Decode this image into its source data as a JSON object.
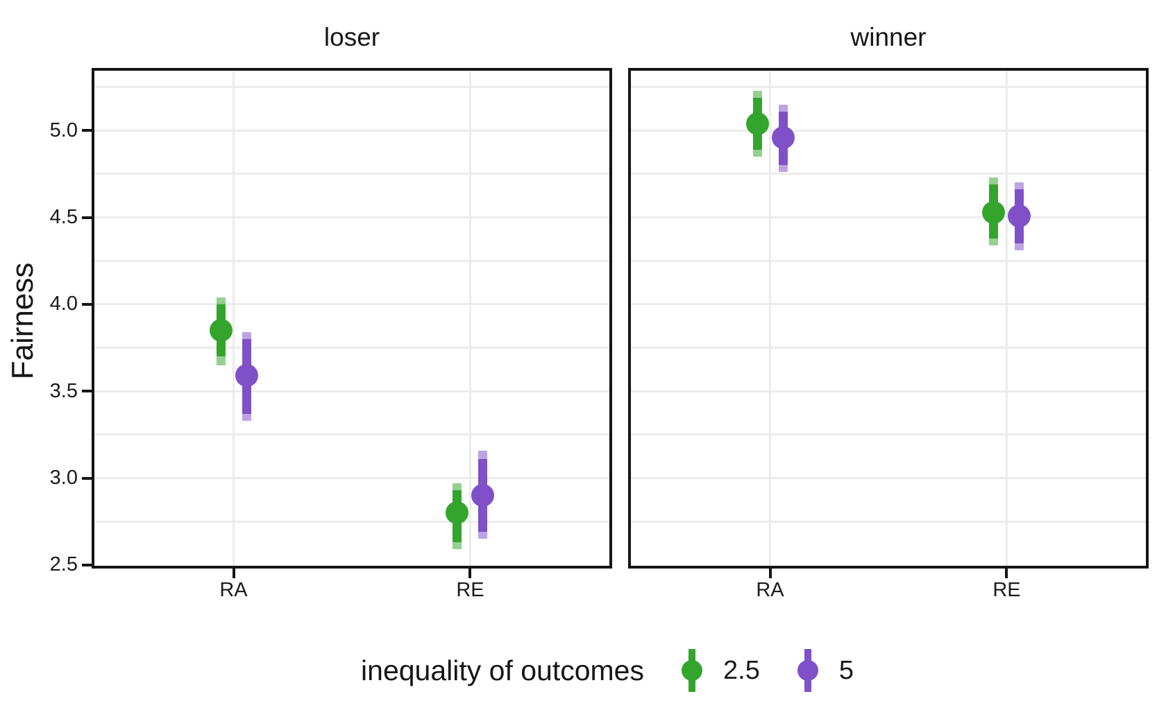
{
  "chart_data": {
    "type": "pointrange",
    "facets": [
      "loser",
      "winner"
    ],
    "categories": [
      "RA",
      "RE"
    ],
    "ylabel": "Fairness",
    "y_axis": {
      "domain": [
        2.48,
        5.36
      ],
      "ticks": [
        {
          "value": 5.0,
          "label": "5.0"
        },
        {
          "value": 4.5,
          "label": "4.5"
        },
        {
          "value": 4.0,
          "label": "4.0"
        },
        {
          "value": 3.5,
          "label": "3.5"
        },
        {
          "value": 3.0,
          "label": "3.0"
        },
        {
          "value": 2.5,
          "label": "2.5"
        }
      ],
      "minor_gridlines": [
        2.75,
        3.0,
        3.25,
        3.5,
        3.75,
        4.0,
        4.25,
        4.5,
        4.75,
        5.0,
        5.25
      ],
      "grid": true
    },
    "series": [
      {
        "name": "2.5",
        "color": "#33a52c"
      },
      {
        "name": "5",
        "color": "#7f50c8"
      }
    ],
    "points": [
      {
        "facet": "loser",
        "category": "RA",
        "series": "2.5",
        "mean": 3.85,
        "inner": [
          3.7,
          4.0
        ],
        "outer": [
          3.65,
          4.04
        ]
      },
      {
        "facet": "loser",
        "category": "RA",
        "series": "5",
        "mean": 3.59,
        "inner": [
          3.37,
          3.8
        ],
        "outer": [
          3.33,
          3.84
        ]
      },
      {
        "facet": "loser",
        "category": "RE",
        "series": "2.5",
        "mean": 2.8,
        "inner": [
          2.63,
          2.93
        ],
        "outer": [
          2.59,
          2.97
        ]
      },
      {
        "facet": "loser",
        "category": "RE",
        "series": "5",
        "mean": 2.9,
        "inner": [
          2.69,
          3.11
        ],
        "outer": [
          2.65,
          3.16
        ]
      },
      {
        "facet": "winner",
        "category": "RA",
        "series": "2.5",
        "mean": 5.04,
        "inner": [
          4.89,
          5.19
        ],
        "outer": [
          4.85,
          5.23
        ]
      },
      {
        "facet": "winner",
        "category": "RA",
        "series": "5",
        "mean": 4.96,
        "inner": [
          4.8,
          5.11
        ],
        "outer": [
          4.76,
          5.15
        ]
      },
      {
        "facet": "winner",
        "category": "RE",
        "series": "2.5",
        "mean": 4.53,
        "inner": [
          4.38,
          4.69
        ],
        "outer": [
          4.34,
          4.73
        ]
      },
      {
        "facet": "winner",
        "category": "RE",
        "series": "5",
        "mean": 4.51,
        "inner": [
          4.35,
          4.66
        ],
        "outer": [
          4.31,
          4.7
        ]
      }
    ],
    "legend": {
      "title": "inequality of outcomes",
      "position": "bottom"
    }
  }
}
